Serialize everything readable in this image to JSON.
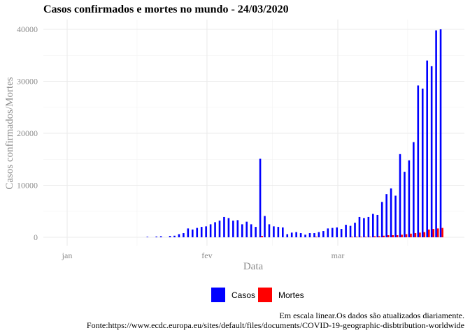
{
  "chart_data": {
    "type": "bar",
    "title": "Casos confirmados e mortes no mundo -  24/03/2020",
    "xlabel": "Data",
    "ylabel": "Casos confirmados/Mortes",
    "x_ticks": [
      {
        "label": "jan",
        "day": 0
      },
      {
        "label": "fev",
        "day": 31
      },
      {
        "label": "mar",
        "day": 60
      }
    ],
    "x_start": "2020-01-01",
    "x_end": "2020-03-24",
    "ylim": [
      0,
      41000
    ],
    "y_ticks": [
      0,
      10000,
      20000,
      30000,
      40000
    ],
    "grid": true,
    "legend_position": "bottom",
    "legend": [
      {
        "name": "Casos",
        "color": "#0000ff"
      },
      {
        "name": "Mortes",
        "color": "#ff0000"
      }
    ],
    "series": [
      {
        "name": "Casos",
        "color": "#0000ff",
        "x": [
          "2020-01-19",
          "2020-01-21",
          "2020-01-22",
          "2020-01-24",
          "2020-01-25",
          "2020-01-26",
          "2020-01-27",
          "2020-01-28",
          "2020-01-29",
          "2020-01-30",
          "2020-01-31",
          "2020-02-01",
          "2020-02-02",
          "2020-02-03",
          "2020-02-04",
          "2020-02-05",
          "2020-02-06",
          "2020-02-07",
          "2020-02-08",
          "2020-02-09",
          "2020-02-10",
          "2020-02-11",
          "2020-02-12",
          "2020-02-13",
          "2020-02-14",
          "2020-02-15",
          "2020-02-16",
          "2020-02-17",
          "2020-02-18",
          "2020-02-19",
          "2020-02-20",
          "2020-02-21",
          "2020-02-22",
          "2020-02-23",
          "2020-02-24",
          "2020-02-25",
          "2020-02-26",
          "2020-02-27",
          "2020-02-28",
          "2020-02-29",
          "2020-03-01",
          "2020-03-02",
          "2020-03-03",
          "2020-03-04",
          "2020-03-05",
          "2020-03-06",
          "2020-03-07",
          "2020-03-08",
          "2020-03-09",
          "2020-03-10",
          "2020-03-11",
          "2020-03-12",
          "2020-03-13",
          "2020-03-14",
          "2020-03-15",
          "2020-03-16",
          "2020-03-17",
          "2020-03-18",
          "2020-03-19",
          "2020-03-20",
          "2020-03-21",
          "2020-03-22",
          "2020-03-23",
          "2020-03-24"
        ],
        "values": [
          100,
          150,
          200,
          250,
          300,
          600,
          800,
          1700,
          1500,
          1800,
          2000,
          2100,
          2500,
          2900,
          3200,
          3900,
          3700,
          3200,
          3300,
          2500,
          3000,
          2500,
          2000,
          15100,
          4100,
          2500,
          2100,
          2000,
          1900,
          600,
          900,
          1000,
          800,
          500,
          800,
          800,
          1000,
          1200,
          1700,
          1800,
          1900,
          1600,
          2400,
          2200,
          2800,
          3900,
          3700,
          3900,
          4500,
          4300,
          6800,
          8300,
          9400,
          8000,
          16000,
          12600,
          14800,
          18300,
          29200,
          28600,
          34000,
          32900,
          39800,
          40000
        ]
      },
      {
        "name": "Mortes",
        "color": "#ff0000",
        "x": [
          "2020-02-13",
          "2020-02-25",
          "2020-03-04",
          "2020-03-05",
          "2020-03-06",
          "2020-03-07",
          "2020-03-08",
          "2020-03-09",
          "2020-03-10",
          "2020-03-11",
          "2020-03-12",
          "2020-03-13",
          "2020-03-14",
          "2020-03-15",
          "2020-03-16",
          "2020-03-17",
          "2020-03-18",
          "2020-03-19",
          "2020-03-20",
          "2020-03-21",
          "2020-03-22",
          "2020-03-23",
          "2020-03-24"
        ],
        "values": [
          250,
          100,
          100,
          100,
          100,
          100,
          100,
          200,
          200,
          300,
          400,
          400,
          400,
          500,
          600,
          700,
          800,
          900,
          1000,
          1500,
          1600,
          1700,
          1800
        ]
      }
    ],
    "caption": [
      "Em escala linear.Os dados são atualizados diariamente.",
      "Fonte:https://www.ecdc.europa.eu/sites/default/files/documents/COVID-19-geographic-disbtribution-worldwide"
    ]
  }
}
